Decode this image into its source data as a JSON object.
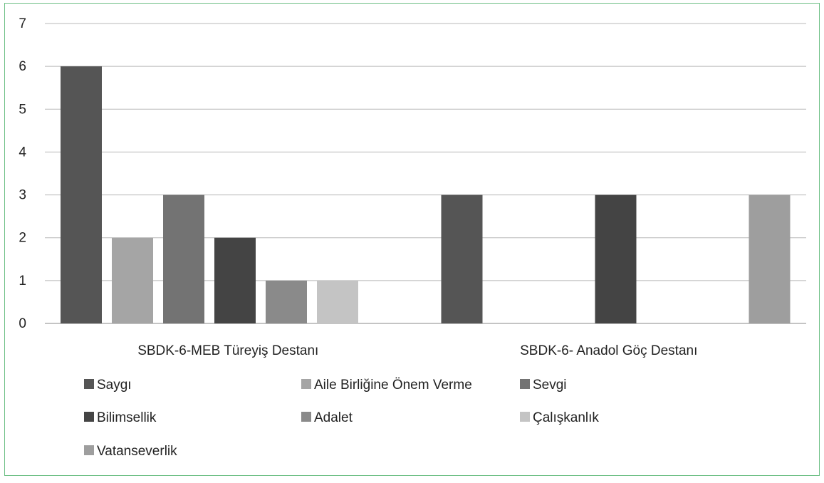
{
  "chart_data": {
    "type": "bar",
    "categories": [
      "SBDK-6-MEB Türeyiş Destanı",
      "SBDK-6- Anadol Göç Destanı"
    ],
    "series": [
      {
        "name": "Saygı",
        "values": [
          6,
          3
        ],
        "color": "#555555"
      },
      {
        "name": "Aile Birliğine Önem Verme",
        "values": [
          2,
          0
        ],
        "color": "#a5a5a5"
      },
      {
        "name": "Sevgi",
        "values": [
          3,
          0
        ],
        "color": "#737373"
      },
      {
        "name": "Bilimsellik",
        "values": [
          2,
          3
        ],
        "color": "#444444"
      },
      {
        "name": "Adalet",
        "values": [
          1,
          0
        ],
        "color": "#8a8a8a"
      },
      {
        "name": "Çalışkanlık",
        "values": [
          1,
          0
        ],
        "color": "#c4c4c4"
      },
      {
        "name": "Vatanseverlik",
        "values": [
          0,
          3
        ],
        "color": "#9e9e9e"
      }
    ],
    "yticks": [
      "0",
      "1",
      "2",
      "3",
      "4",
      "5",
      "6",
      "7"
    ],
    "ylim": [
      0,
      7
    ],
    "grid": true,
    "legend_position": "bottom"
  }
}
